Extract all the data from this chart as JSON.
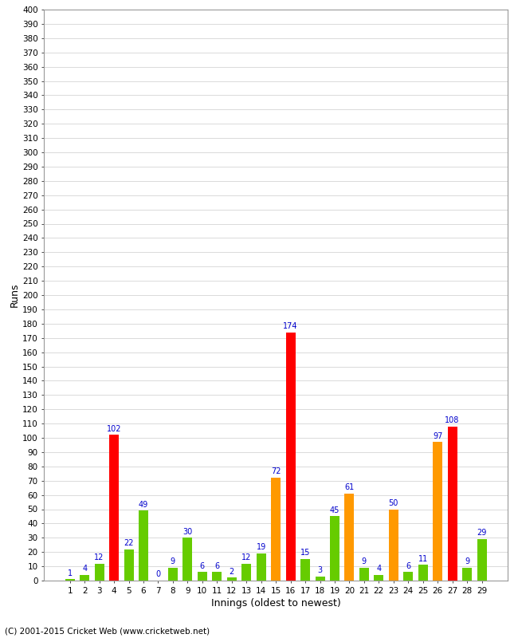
{
  "xlabel": "Innings (oldest to newest)",
  "ylabel": "Runs",
  "footer": "(C) 2001-2015 Cricket Web (www.cricketweb.net)",
  "ylim": [
    0,
    400
  ],
  "background_color": "#ffffff",
  "plot_background": "#ffffff",
  "grid_color": "#cccccc",
  "innings": [
    1,
    2,
    3,
    4,
    5,
    6,
    7,
    8,
    9,
    10,
    11,
    12,
    13,
    14,
    15,
    16,
    17,
    18,
    19,
    20,
    21,
    22,
    23,
    24,
    25,
    26,
    27,
    28,
    29
  ],
  "values": [
    1,
    4,
    12,
    102,
    22,
    49,
    0,
    9,
    30,
    6,
    6,
    2,
    12,
    19,
    72,
    174,
    15,
    3,
    45,
    61,
    9,
    4,
    50,
    6,
    11,
    97,
    108,
    9,
    29
  ],
  "colors": [
    "#66cc00",
    "#66cc00",
    "#66cc00",
    "#ff0000",
    "#66cc00",
    "#66cc00",
    "#66cc00",
    "#66cc00",
    "#66cc00",
    "#66cc00",
    "#66cc00",
    "#66cc00",
    "#66cc00",
    "#66cc00",
    "#ff9900",
    "#ff0000",
    "#66cc00",
    "#66cc00",
    "#66cc00",
    "#ff9900",
    "#66cc00",
    "#66cc00",
    "#ff9900",
    "#66cc00",
    "#66cc00",
    "#ff9900",
    "#ff0000",
    "#66cc00",
    "#66cc00"
  ],
  "label_color": "#0000cc",
  "label_fontsize": 7,
  "tick_fontsize": 7.5,
  "footer_fontsize": 7.5
}
